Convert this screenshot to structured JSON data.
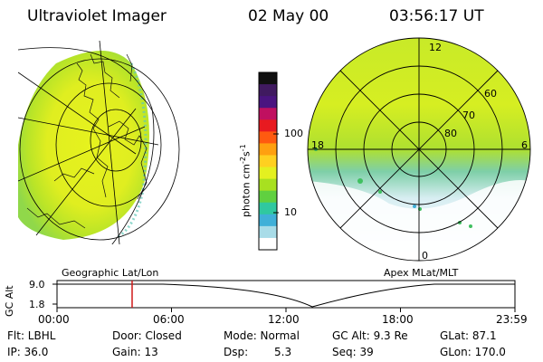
{
  "header": {
    "instrument": "Ultraviolet Imager",
    "date": "02 May 00",
    "time": "03:56:17 UT"
  },
  "colorbar": {
    "unit_label": "photon cm",
    "unit_exp1": "-2",
    "unit_mid": "s",
    "unit_exp2": "-1",
    "tick_high": "100",
    "tick_low": "10",
    "colors": [
      "#101010",
      "#401a60",
      "#4a1480",
      "#c01060",
      "#e81a20",
      "#ff5a10",
      "#ffa010",
      "#ffd020",
      "#e4f020",
      "#a8e020",
      "#60d040",
      "#30c8a0",
      "#40b0d8",
      "#a8dce8",
      "#ffffff"
    ]
  },
  "polar_plot": {
    "mlt_labels": {
      "top": "12",
      "left": "18",
      "right": "6",
      "bottom": "0"
    },
    "lat_labels": [
      "60",
      "70",
      "80"
    ]
  },
  "timeline": {
    "ylabel": "GC Alt",
    "y_high": "9.0",
    "y_low": "1.8",
    "left_caption": "Geographic Lat/Lon",
    "right_caption": "Apex MLat/MLT",
    "x_ticks": [
      "00:00",
      "06:00",
      "12:00",
      "18:00",
      "23:59"
    ],
    "current_time_fraction": 0.164
  },
  "info": {
    "flt": "Flt: LBHL",
    "ip": "IP: 36.0",
    "door": "Door: Closed",
    "gain": "Gain: 13",
    "mode": "Mode: Normal",
    "dsp_label": "Dsp:",
    "dsp_value": "5.3",
    "gc_alt": "GC Alt: 9.3 Re",
    "seq": "Seq: 39",
    "glat": "GLat: 87.1",
    "glon": "GLon: 170.0"
  }
}
